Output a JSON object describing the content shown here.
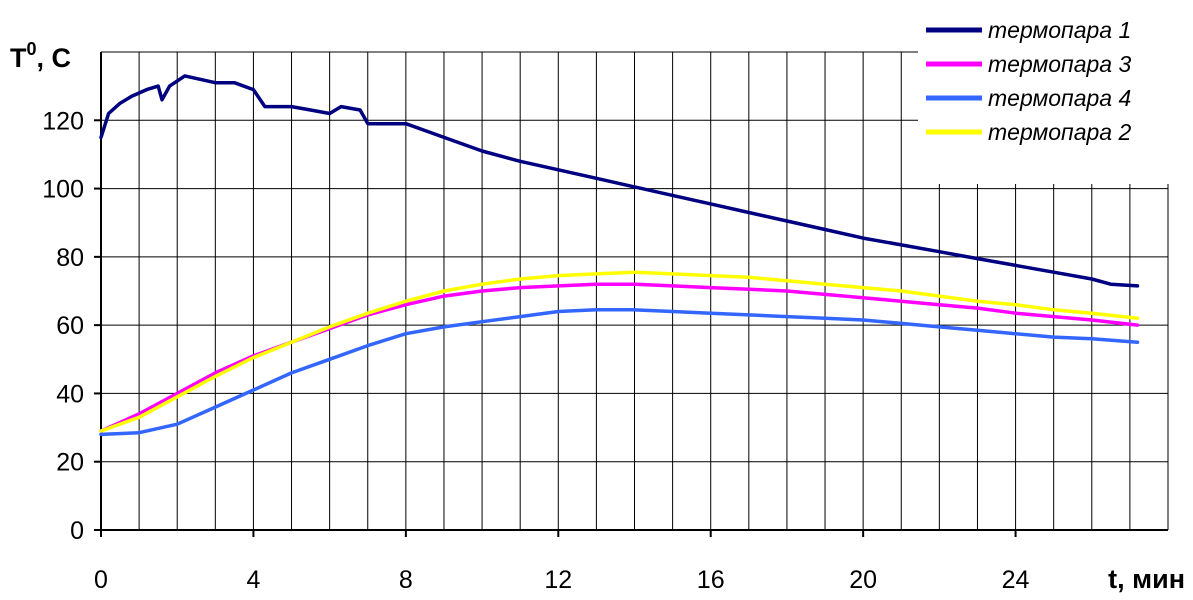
{
  "chart_data": {
    "type": "line",
    "title": "",
    "xlabel": "t, мин",
    "ylabel_main": "T",
    "ylabel_sup": "0",
    "ylabel_rest": ", C",
    "xlim": [
      0,
      28
    ],
    "ylim": [
      0,
      140
    ],
    "x_ticks": [
      0,
      4,
      8,
      12,
      16,
      20,
      24
    ],
    "y_ticks": [
      0,
      20,
      40,
      60,
      80,
      100,
      120
    ],
    "x_grid_step": 1,
    "y_grid_step": 20,
    "grid": true,
    "legend_position": "top-right",
    "series": [
      {
        "name": "термопара 1",
        "color": "#000080",
        "points": [
          [
            0,
            115
          ],
          [
            0.2,
            122
          ],
          [
            0.5,
            125
          ],
          [
            0.8,
            127
          ],
          [
            1.2,
            129
          ],
          [
            1.5,
            130
          ],
          [
            1.6,
            126
          ],
          [
            1.8,
            130
          ],
          [
            2.2,
            133
          ],
          [
            2.6,
            132
          ],
          [
            3,
            131
          ],
          [
            3.5,
            131
          ],
          [
            4,
            129
          ],
          [
            4.3,
            124
          ],
          [
            4.6,
            124
          ],
          [
            5,
            124
          ],
          [
            5.5,
            123
          ],
          [
            6,
            122
          ],
          [
            6.3,
            124
          ],
          [
            6.8,
            123
          ],
          [
            7,
            119
          ],
          [
            7.5,
            119
          ],
          [
            8,
            119
          ],
          [
            8.5,
            117
          ],
          [
            9,
            115
          ],
          [
            10,
            111
          ],
          [
            11,
            108
          ],
          [
            12,
            105.5
          ],
          [
            13,
            103
          ],
          [
            14,
            100.5
          ],
          [
            15,
            98
          ],
          [
            16,
            95.5
          ],
          [
            17,
            93
          ],
          [
            18,
            90.5
          ],
          [
            19,
            88
          ],
          [
            20,
            85.5
          ],
          [
            21,
            83.5
          ],
          [
            22,
            81.5
          ],
          [
            23,
            79.5
          ],
          [
            24,
            77.5
          ],
          [
            25,
            75.5
          ],
          [
            26,
            73.5
          ],
          [
            26.5,
            72
          ],
          [
            27.2,
            71.5
          ]
        ]
      },
      {
        "name": "термопара 3",
        "color": "#ff00ff",
        "points": [
          [
            0,
            29
          ],
          [
            1,
            34
          ],
          [
            2,
            40
          ],
          [
            3,
            46
          ],
          [
            4,
            51
          ],
          [
            5,
            55
          ],
          [
            6,
            59
          ],
          [
            7,
            63
          ],
          [
            8,
            66
          ],
          [
            9,
            68.5
          ],
          [
            10,
            70
          ],
          [
            11,
            71
          ],
          [
            12,
            71.5
          ],
          [
            13,
            72
          ],
          [
            14,
            72
          ],
          [
            15,
            71.5
          ],
          [
            16,
            71
          ],
          [
            17,
            70.5
          ],
          [
            18,
            70
          ],
          [
            19,
            69
          ],
          [
            20,
            68
          ],
          [
            21,
            67
          ],
          [
            22,
            66
          ],
          [
            23,
            65
          ],
          [
            24,
            63.5
          ],
          [
            25,
            62.5
          ],
          [
            26,
            61.5
          ],
          [
            27.2,
            60
          ]
        ]
      },
      {
        "name": "термопара 4",
        "color": "#3366ff",
        "points": [
          [
            0,
            28
          ],
          [
            1,
            28.5
          ],
          [
            2,
            31
          ],
          [
            3,
            36
          ],
          [
            4,
            41
          ],
          [
            5,
            46
          ],
          [
            6,
            50
          ],
          [
            7,
            54
          ],
          [
            8,
            57.5
          ],
          [
            9,
            59.5
          ],
          [
            10,
            61
          ],
          [
            11,
            62.5
          ],
          [
            12,
            64
          ],
          [
            13,
            64.5
          ],
          [
            14,
            64.5
          ],
          [
            15,
            64
          ],
          [
            16,
            63.5
          ],
          [
            17,
            63
          ],
          [
            18,
            62.5
          ],
          [
            19,
            62
          ],
          [
            20,
            61.5
          ],
          [
            21,
            60.5
          ],
          [
            22,
            59.5
          ],
          [
            23,
            58.5
          ],
          [
            24,
            57.5
          ],
          [
            25,
            56.5
          ],
          [
            26,
            56
          ],
          [
            27.2,
            55
          ]
        ]
      },
      {
        "name": "термопара 2",
        "color": "#ffff00",
        "points": [
          [
            0,
            29
          ],
          [
            1,
            33
          ],
          [
            2,
            39
          ],
          [
            3,
            45
          ],
          [
            4,
            50.5
          ],
          [
            5,
            55
          ],
          [
            6,
            59.5
          ],
          [
            7,
            63.5
          ],
          [
            8,
            67
          ],
          [
            9,
            70
          ],
          [
            10,
            72
          ],
          [
            11,
            73.5
          ],
          [
            12,
            74.5
          ],
          [
            13,
            75
          ],
          [
            14,
            75.5
          ],
          [
            15,
            75
          ],
          [
            16,
            74.5
          ],
          [
            17,
            74
          ],
          [
            18,
            73
          ],
          [
            19,
            72
          ],
          [
            20,
            71
          ],
          [
            21,
            70
          ],
          [
            22,
            68.5
          ],
          [
            23,
            67
          ],
          [
            24,
            66
          ],
          [
            25,
            64.5
          ],
          [
            26,
            63.5
          ],
          [
            27.2,
            62
          ]
        ]
      }
    ]
  }
}
